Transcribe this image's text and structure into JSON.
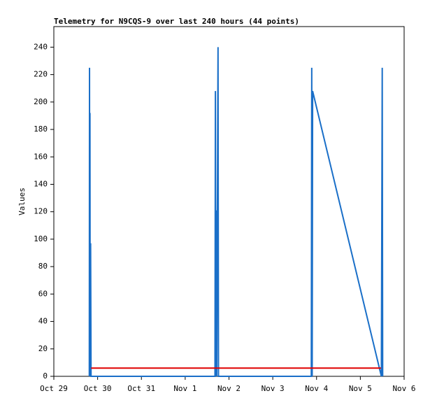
{
  "chart_data": {
    "type": "line",
    "title": "Telemetry for N9CQS-9 over last 240 hours (44 points)",
    "y_label": "Values",
    "xlim": [
      0,
      8
    ],
    "xticks": [
      {
        "value": 0,
        "label": "Oct 29"
      },
      {
        "value": 1,
        "label": "Oct 30"
      },
      {
        "value": 2,
        "label": "Oct 31"
      },
      {
        "value": 3,
        "label": "Nov 1"
      },
      {
        "value": 4,
        "label": "Nov 2"
      },
      {
        "value": 5,
        "label": "Nov 3"
      },
      {
        "value": 6,
        "label": "Nov 4"
      },
      {
        "value": 7,
        "label": "Nov 5"
      },
      {
        "value": 8,
        "label": "Nov 6"
      }
    ],
    "ylim": [
      0,
      255
    ],
    "yticks": [
      0,
      20,
      40,
      60,
      80,
      100,
      120,
      140,
      160,
      180,
      200,
      220,
      240
    ],
    "series": [
      {
        "color": "#1a6fc8",
        "x": [
          0.81,
          0.815,
          0.82,
          0.825,
          0.83,
          0.84,
          0.85,
          3.68,
          3.69,
          3.7,
          3.71,
          3.72,
          3.75,
          3.76,
          5.88,
          5.89,
          5.9,
          5.91,
          7.48,
          7.5,
          7.51
        ],
        "values": [
          0,
          225,
          0,
          192,
          0,
          97,
          0,
          0,
          208,
          0,
          121,
          0,
          240,
          0,
          0,
          225,
          0,
          208,
          0,
          225,
          0
        ]
      },
      {
        "color": "#e00000",
        "x": [
          0.85,
          7.47
        ],
        "values": [
          6,
          6
        ]
      }
    ]
  }
}
